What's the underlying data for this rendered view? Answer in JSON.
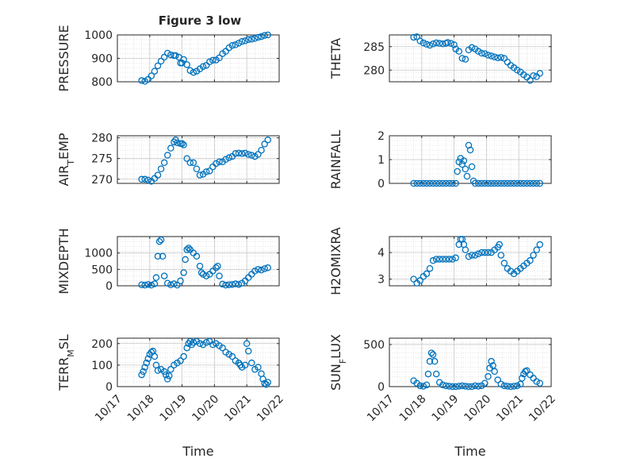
{
  "figure_title": "Figure 3 low",
  "marker_color": "#0072BD",
  "chart_data": [
    {
      "type": "scatter",
      "ylabel": "PRESSURE",
      "ylabel_sub": "",
      "xlabel": "",
      "xlim": [
        "10/17",
        "10/22"
      ],
      "ylim": [
        800,
        1000
      ],
      "yticks": [
        800,
        900,
        1000
      ],
      "show_xtick_labels": false,
      "grid": true,
      "title": "Figure 3 low",
      "x": [
        17.75,
        17.85,
        17.95,
        18.05,
        18.15,
        18.25,
        18.35,
        18.45,
        18.55,
        18.65,
        18.75,
        18.8,
        18.9,
        18.95,
        19.0,
        19.05,
        19.15,
        19.25,
        19.35,
        19.45,
        19.55,
        19.65,
        19.75,
        19.85,
        19.95,
        20.05,
        20.15,
        20.25,
        20.35,
        20.45,
        20.55,
        20.65,
        20.75,
        20.85,
        20.95,
        21.05,
        21.15,
        21.25,
        21.35,
        21.45,
        21.55,
        21.65
      ],
      "y": [
        805,
        802,
        810,
        825,
        845,
        868,
        888,
        905,
        922,
        915,
        912,
        912,
        905,
        880,
        880,
        895,
        873,
        848,
        840,
        845,
        855,
        865,
        870,
        885,
        892,
        893,
        902,
        920,
        930,
        945,
        955,
        958,
        965,
        972,
        975,
        980,
        982,
        985,
        990,
        993,
        998,
        1000
      ]
    },
    {
      "type": "scatter",
      "ylabel": "THETA",
      "ylabel_sub": "",
      "xlabel": "",
      "xlim": [
        "10/17",
        "10/22"
      ],
      "ylim": [
        277.5,
        287.5
      ],
      "yticks": [
        280,
        285
      ],
      "show_xtick_labels": false,
      "grid": true,
      "x": [
        17.75,
        17.85,
        17.95,
        18.05,
        18.15,
        18.25,
        18.35,
        18.45,
        18.55,
        18.65,
        18.75,
        18.8,
        18.9,
        19.0,
        19.05,
        19.15,
        19.25,
        19.35,
        19.45,
        19.55,
        19.65,
        19.75,
        19.85,
        19.95,
        20.05,
        20.15,
        20.25,
        20.35,
        20.45,
        20.55,
        20.65,
        20.75,
        20.85,
        20.95,
        21.05,
        21.15,
        21.25,
        21.35,
        21.45,
        21.55,
        21.65
      ],
      "y": [
        287,
        287.1,
        286.2,
        285.8,
        285.5,
        285.3,
        285.6,
        285.8,
        285.7,
        285.6,
        285.7,
        285.9,
        285.7,
        285.4,
        284.5,
        284.0,
        282.5,
        282.3,
        284.3,
        284.8,
        284.5,
        284.0,
        283.6,
        283.5,
        283.2,
        283.0,
        282.8,
        282.6,
        282.7,
        282.5,
        281.7,
        281.0,
        280.5,
        280.0,
        279.6,
        279.0,
        278.5,
        277.8,
        278.8,
        278.6,
        279.3
      ]
    },
    {
      "type": "scatter",
      "ylabel": "AIR",
      "ylabel_sub": "T",
      "ylabel_rest": "EMP",
      "xlabel": "",
      "xlim": [
        "10/17",
        "10/22"
      ],
      "ylim": [
        269,
        280.5
      ],
      "yticks": [
        270,
        275,
        280
      ],
      "show_xtick_labels": false,
      "grid": true,
      "x": [
        17.75,
        17.85,
        17.95,
        18.05,
        18.15,
        18.25,
        18.35,
        18.45,
        18.55,
        18.65,
        18.75,
        18.8,
        18.85,
        18.95,
        19.0,
        19.05,
        19.15,
        19.25,
        19.35,
        19.45,
        19.55,
        19.65,
        19.75,
        19.85,
        19.95,
        20.05,
        20.15,
        20.25,
        20.35,
        20.45,
        20.55,
        20.65,
        20.75,
        20.85,
        20.95,
        21.05,
        21.15,
        21.25,
        21.35,
        21.45,
        21.55,
        21.65
      ],
      "y": [
        270,
        270,
        269.8,
        269.5,
        270.2,
        271,
        272.5,
        274,
        275.8,
        277.5,
        279,
        279.5,
        278.8,
        278.6,
        278.6,
        278.3,
        275,
        274,
        274,
        272.5,
        271,
        271.2,
        271.8,
        272,
        273,
        273.8,
        274.2,
        274.2,
        274.8,
        275.2,
        275.5,
        276.2,
        276.3,
        276.2,
        276.3,
        276,
        275.8,
        275.5,
        276,
        277,
        278.5,
        279.5
      ]
    },
    {
      "type": "scatter",
      "ylabel": "RAINFALL",
      "ylabel_sub": "",
      "xlabel": "",
      "xlim": [
        "10/17",
        "10/22"
      ],
      "ylim": [
        0,
        2
      ],
      "yticks": [
        0,
        1,
        2
      ],
      "show_xtick_labels": false,
      "grid": true,
      "x": [
        17.75,
        17.85,
        17.95,
        18.05,
        18.15,
        18.25,
        18.35,
        18.45,
        18.55,
        18.65,
        18.75,
        18.85,
        18.95,
        19.05,
        19.1,
        19.15,
        19.2,
        19.25,
        19.3,
        19.35,
        19.4,
        19.45,
        19.5,
        19.55,
        19.6,
        19.65,
        19.75,
        19.85,
        19.95,
        20.05,
        20.15,
        20.25,
        20.35,
        20.45,
        20.55,
        20.65,
        20.75,
        20.85,
        20.95,
        21.05,
        21.15,
        21.25,
        21.35,
        21.45,
        21.55,
        21.65
      ],
      "y": [
        0,
        0,
        0,
        0,
        0,
        0,
        0,
        0,
        0,
        0,
        0,
        0,
        0,
        0,
        0.5,
        0.9,
        1.05,
        0.8,
        0.95,
        0.6,
        0.3,
        1.6,
        1.4,
        0.7,
        0.1,
        0,
        0,
        0,
        0,
        0,
        0,
        0,
        0,
        0,
        0,
        0,
        0,
        0,
        0,
        0,
        0,
        0,
        0,
        0,
        0,
        0
      ]
    },
    {
      "type": "scatter",
      "ylabel": "MIXDEPTH",
      "ylabel_sub": "",
      "xlabel": "",
      "xlim": [
        "10/17",
        "10/22"
      ],
      "ylim": [
        0,
        1500
      ],
      "yticks": [
        0,
        500,
        1000
      ],
      "show_xtick_labels": false,
      "grid": true,
      "x": [
        17.75,
        17.85,
        17.95,
        18.05,
        18.15,
        18.2,
        18.25,
        18.3,
        18.35,
        18.4,
        18.45,
        18.55,
        18.65,
        18.75,
        18.85,
        18.95,
        19.05,
        19.1,
        19.15,
        19.2,
        19.25,
        19.35,
        19.45,
        19.55,
        19.6,
        19.65,
        19.75,
        19.85,
        19.95,
        20.05,
        20.1,
        20.15,
        20.25,
        20.35,
        20.45,
        20.55,
        20.65,
        20.75,
        20.85,
        20.95,
        21.05,
        21.15,
        21.25,
        21.35,
        21.45,
        21.55,
        21.65
      ],
      "y": [
        30,
        20,
        40,
        20,
        60,
        250,
        900,
        1350,
        1400,
        900,
        300,
        80,
        30,
        60,
        20,
        150,
        400,
        800,
        1100,
        1150,
        1100,
        1000,
        900,
        600,
        400,
        350,
        300,
        350,
        450,
        550,
        600,
        300,
        50,
        20,
        30,
        40,
        60,
        40,
        80,
        150,
        250,
        350,
        450,
        500,
        480,
        520,
        550
      ]
    },
    {
      "type": "scatter",
      "ylabel": "H2OMIXRA",
      "ylabel_sub": "",
      "xlabel": "",
      "xlim": [
        "10/17",
        "10/22"
      ],
      "ylim": [
        2.75,
        4.6
      ],
      "yticks": [
        3,
        4
      ],
      "show_xtick_labels": false,
      "grid": true,
      "x": [
        17.75,
        17.85,
        17.95,
        18.05,
        18.15,
        18.25,
        18.35,
        18.45,
        18.55,
        18.65,
        18.75,
        18.85,
        18.95,
        19.05,
        19.15,
        19.2,
        19.25,
        19.3,
        19.35,
        19.45,
        19.55,
        19.65,
        19.75,
        19.85,
        19.95,
        20.05,
        20.15,
        20.25,
        20.35,
        20.4,
        20.45,
        20.55,
        20.65,
        20.75,
        20.85,
        20.95,
        21.05,
        21.15,
        21.25,
        21.35,
        21.45,
        21.55,
        21.65
      ],
      "y": [
        3.0,
        2.85,
        2.95,
        3.1,
        3.2,
        3.4,
        3.7,
        3.75,
        3.75,
        3.75,
        3.75,
        3.75,
        3.75,
        3.8,
        4.3,
        4.5,
        4.5,
        4.3,
        4.1,
        3.85,
        3.9,
        3.9,
        3.95,
        4.0,
        4.0,
        4.0,
        4.0,
        4.1,
        4.2,
        4.3,
        3.9,
        3.6,
        3.4,
        3.3,
        3.2,
        3.3,
        3.4,
        3.5,
        3.6,
        3.7,
        3.9,
        4.1,
        4.3
      ]
    },
    {
      "type": "scatter",
      "ylabel": "TERR",
      "ylabel_sub": "M",
      "ylabel_rest": "SL",
      "xlabel": "Time",
      "xlim": [
        "10/17",
        "10/22"
      ],
      "xticks": [
        "10/17",
        "10/18",
        "10/19",
        "10/20",
        "10/21",
        "10/22"
      ],
      "ylim": [
        0,
        225
      ],
      "yticks": [
        0,
        100,
        200
      ],
      "show_xtick_labels": true,
      "grid": true,
      "x": [
        17.75,
        17.8,
        17.85,
        17.9,
        17.95,
        18.0,
        18.05,
        18.1,
        18.15,
        18.2,
        18.25,
        18.35,
        18.45,
        18.5,
        18.55,
        18.6,
        18.65,
        18.75,
        18.85,
        18.95,
        19.05,
        19.15,
        19.2,
        19.25,
        19.3,
        19.35,
        19.45,
        19.55,
        19.65,
        19.75,
        19.85,
        19.95,
        20.05,
        20.15,
        20.25,
        20.35,
        20.45,
        20.55,
        20.65,
        20.75,
        20.8,
        20.85,
        20.95,
        21.0,
        21.05,
        21.15,
        21.25,
        21.35,
        21.45,
        21.5,
        21.55,
        21.6,
        21.65
      ],
      "y": [
        55,
        70,
        90,
        110,
        130,
        150,
        160,
        165,
        140,
        100,
        75,
        80,
        70,
        55,
        35,
        50,
        80,
        100,
        110,
        120,
        140,
        180,
        200,
        210,
        195,
        205,
        210,
        200,
        195,
        205,
        210,
        195,
        200,
        190,
        180,
        160,
        150,
        140,
        120,
        110,
        100,
        90,
        100,
        200,
        165,
        110,
        80,
        90,
        60,
        35,
        15,
        10,
        20
      ]
    },
    {
      "type": "scatter",
      "ylabel": "SUN",
      "ylabel_sub": "F",
      "ylabel_rest": "LUX",
      "xlabel": "Time",
      "xlim": [
        "10/17",
        "10/22"
      ],
      "xticks": [
        "10/17",
        "10/18",
        "10/19",
        "10/20",
        "10/21",
        "10/22"
      ],
      "ylim": [
        0,
        575
      ],
      "yticks": [
        0,
        500
      ],
      "show_xtick_labels": true,
      "grid": true,
      "x": [
        17.75,
        17.85,
        17.95,
        18.05,
        18.15,
        18.2,
        18.25,
        18.3,
        18.35,
        18.4,
        18.45,
        18.55,
        18.65,
        18.75,
        18.85,
        18.95,
        19.05,
        19.15,
        19.25,
        19.35,
        19.45,
        19.55,
        19.65,
        19.75,
        19.85,
        19.95,
        20.05,
        20.1,
        20.15,
        20.2,
        20.25,
        20.35,
        20.45,
        20.55,
        20.65,
        20.75,
        20.85,
        20.95,
        21.05,
        21.1,
        21.15,
        21.2,
        21.25,
        21.35,
        21.45,
        21.55,
        21.65
      ],
      "y": [
        70,
        40,
        10,
        5,
        20,
        150,
        300,
        400,
        380,
        300,
        150,
        50,
        20,
        10,
        5,
        0,
        0,
        5,
        10,
        5,
        0,
        0,
        10,
        5,
        10,
        40,
        120,
        220,
        300,
        250,
        180,
        80,
        30,
        10,
        5,
        0,
        5,
        10,
        30,
        100,
        150,
        180,
        190,
        140,
        100,
        60,
        40
      ]
    }
  ]
}
